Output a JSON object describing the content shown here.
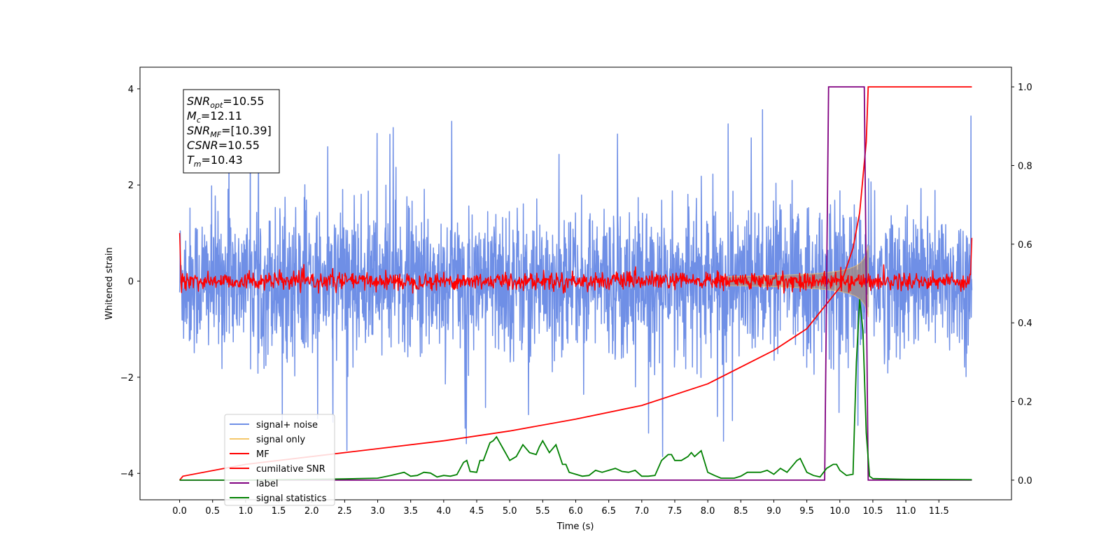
{
  "chart_data": {
    "type": "line",
    "xlabel": "Time (s)",
    "ylabel": "Whitened strain",
    "xlim": [
      -0.6,
      12.6
    ],
    "ylim": [
      -4.55,
      4.45
    ],
    "ylim_right": [
      -0.05,
      1.05
    ],
    "x_ticks": [
      "0.0",
      "0.5",
      "1.0",
      "1.5",
      "2.0",
      "2.5",
      "3.0",
      "3.5",
      "4.0",
      "4.5",
      "5.0",
      "5.5",
      "6.0",
      "6.5",
      "7.0",
      "7.5",
      "8.0",
      "8.5",
      "9.0",
      "9.5",
      "10.0",
      "10.5",
      "11.0",
      "11.5"
    ],
    "y_ticks": [
      "4",
      "2",
      "0",
      "−2",
      "−4"
    ],
    "y_ticks_right": [
      "1.0",
      "0.8",
      "0.6",
      "0.4",
      "0.2",
      "0.0"
    ],
    "grid": false,
    "legend_position": "lower-left",
    "annotation": {
      "lines": [
        {
          "main": "SNR",
          "sub": "opt",
          "rest": "=10.55"
        },
        {
          "main": "M",
          "sub": "c",
          "rest": "=12.11"
        },
        {
          "main": "SNR",
          "sub": "MF",
          "rest": "=[10.39]"
        },
        {
          "main": "CSNR",
          "sub": "",
          "rest": "=10.55"
        },
        {
          "main": "T",
          "sub": "m",
          "rest": "=10.43"
        }
      ]
    },
    "series": [
      {
        "name": "signal+ noise",
        "color": "#6f8fe6",
        "axis": "left",
        "description": "white noise, std ≈ 0.75, spikes up to 4.0",
        "x_range": [
          0,
          12
        ],
        "std": 0.75
      },
      {
        "name": "signal only",
        "color": "#f5c86a",
        "axis": "left",
        "description": "chirp growing to amplitude ≈ 0.75, merger at 10.43 s",
        "merger_time": 10.43
      },
      {
        "name": "MF",
        "color": "#ff0000",
        "axis": "left",
        "description": "matched filter output, ≈ 0 with noise ± 0.15, edge spikes to 1.0"
      },
      {
        "name": "cumilative SNR",
        "color": "#ff0000",
        "axis": "right",
        "x": [
          0.0,
          0.05,
          1.0,
          2.0,
          3.0,
          4.0,
          5.0,
          6.0,
          7.0,
          8.0,
          9.0,
          9.5,
          10.0,
          10.2,
          10.3,
          10.4,
          10.43,
          12.0
        ],
        "values": [
          0.0,
          0.01,
          0.04,
          0.06,
          0.08,
          0.1,
          0.125,
          0.155,
          0.19,
          0.245,
          0.33,
          0.385,
          0.49,
          0.59,
          0.68,
          0.86,
          1.0,
          1.0
        ]
      },
      {
        "name": "label",
        "color": "#800080",
        "axis": "right",
        "x": [
          0.0,
          9.77,
          9.83,
          10.37,
          10.43,
          12.0
        ],
        "values": [
          0.0,
          0.0,
          1.0,
          1.0,
          0.0,
          0.0
        ]
      },
      {
        "name": "signal statistics",
        "color": "#008000",
        "axis": "right",
        "x": [
          0.0,
          1.0,
          2.0,
          2.5,
          3.0,
          3.2,
          3.4,
          3.5,
          3.6,
          3.7,
          3.8,
          3.9,
          4.0,
          4.1,
          4.2,
          4.3,
          4.35,
          4.4,
          4.5,
          4.55,
          4.6,
          4.7,
          4.75,
          4.8,
          4.9,
          5.0,
          5.1,
          5.2,
          5.3,
          5.4,
          5.45,
          5.5,
          5.6,
          5.7,
          5.8,
          5.85,
          5.9,
          6.0,
          6.1,
          6.2,
          6.3,
          6.4,
          6.5,
          6.6,
          6.7,
          6.8,
          6.9,
          7.0,
          7.1,
          7.2,
          7.3,
          7.4,
          7.45,
          7.5,
          7.6,
          7.7,
          7.75,
          7.8,
          7.9,
          8.0,
          8.1,
          8.2,
          8.4,
          8.5,
          8.6,
          8.7,
          8.8,
          8.9,
          9.0,
          9.1,
          9.2,
          9.3,
          9.35,
          9.4,
          9.5,
          9.6,
          9.7,
          9.8,
          9.9,
          9.95,
          10.0,
          10.1,
          10.2,
          10.25,
          10.3,
          10.35,
          10.4,
          10.45,
          10.5,
          11.0,
          12.0
        ],
        "values": [
          0.0,
          0.0,
          0.002,
          0.003,
          0.005,
          0.012,
          0.02,
          0.01,
          0.012,
          0.02,
          0.018,
          0.008,
          0.012,
          0.01,
          0.014,
          0.045,
          0.05,
          0.022,
          0.02,
          0.05,
          0.05,
          0.095,
          0.1,
          0.11,
          0.08,
          0.05,
          0.06,
          0.09,
          0.07,
          0.065,
          0.085,
          0.1,
          0.07,
          0.09,
          0.04,
          0.04,
          0.02,
          0.015,
          0.01,
          0.012,
          0.025,
          0.02,
          0.025,
          0.03,
          0.022,
          0.02,
          0.025,
          0.01,
          0.01,
          0.012,
          0.05,
          0.065,
          0.065,
          0.05,
          0.05,
          0.06,
          0.07,
          0.06,
          0.075,
          0.02,
          0.012,
          0.005,
          0.005,
          0.01,
          0.02,
          0.02,
          0.02,
          0.025,
          0.015,
          0.03,
          0.02,
          0.04,
          0.05,
          0.055,
          0.02,
          0.012,
          0.008,
          0.03,
          0.04,
          0.04,
          0.025,
          0.012,
          0.015,
          0.3,
          0.46,
          0.38,
          0.12,
          0.01,
          0.004,
          0.002,
          0.001
        ]
      }
    ]
  }
}
